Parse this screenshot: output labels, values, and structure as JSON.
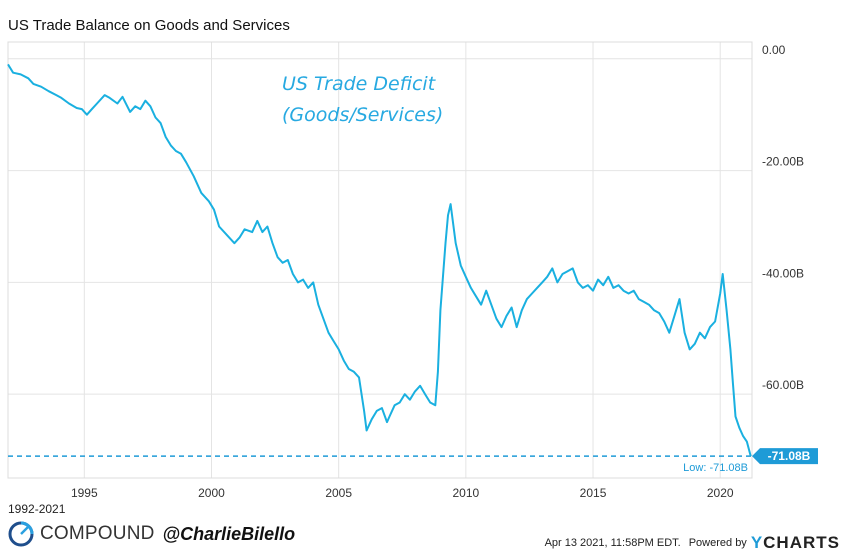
{
  "header": {
    "title": "US Trade Balance on Goods and Services"
  },
  "annotation": {
    "line1": "US Trade Deficit",
    "line2": "(Goods/Services)"
  },
  "footer": {
    "range": "1992-2021",
    "brand": "COMPOUND",
    "handle": "@CharlieBilello",
    "timestamp": "Apr 13 2021, 11:58PM EDT.",
    "powered_by": "Powered by",
    "provider_y": "Y",
    "provider_rest": "CHARTS"
  },
  "colors": {
    "line": "#1ab0e0",
    "grid": "#e4e4e4",
    "accent": "#1e9bd7"
  },
  "chart_data": {
    "type": "line",
    "title": "US Trade Balance on Goods and Services",
    "x_unit": "year",
    "y_unit": "billions USD",
    "xlim": [
      1992.0,
      2021.25
    ],
    "ylim": [
      -75,
      3
    ],
    "x_ticks": [
      1995,
      2000,
      2005,
      2010,
      2015,
      2020
    ],
    "x_tick_labels": [
      "1995",
      "2000",
      "2005",
      "2010",
      "2015",
      "2020"
    ],
    "y_ticks": [
      0,
      -20,
      -40,
      -60
    ],
    "y_tick_labels": [
      "0.00",
      "-20.00B",
      "-40.00B",
      "-60.00B"
    ],
    "grid": true,
    "low_line": {
      "value": -71.08,
      "label": "Low: -71.08B",
      "badge": "-71.08B"
    },
    "series": [
      {
        "values": [
          [
            1992.0,
            -1.0
          ],
          [
            1992.2,
            -2.5
          ],
          [
            1992.5,
            -2.8
          ],
          [
            1992.8,
            -3.5
          ],
          [
            1993.0,
            -4.5
          ],
          [
            1993.3,
            -5.0
          ],
          [
            1993.6,
            -5.8
          ],
          [
            1993.9,
            -6.5
          ],
          [
            1994.1,
            -7.0
          ],
          [
            1994.4,
            -8.0
          ],
          [
            1994.7,
            -8.8
          ],
          [
            1994.9,
            -9.0
          ],
          [
            1995.1,
            -10.0
          ],
          [
            1995.3,
            -9.0
          ],
          [
            1995.5,
            -8.0
          ],
          [
            1995.8,
            -6.5
          ],
          [
            1996.0,
            -7.0
          ],
          [
            1996.3,
            -8.0
          ],
          [
            1996.5,
            -6.8
          ],
          [
            1996.8,
            -9.5
          ],
          [
            1997.0,
            -8.5
          ],
          [
            1997.2,
            -9.0
          ],
          [
            1997.4,
            -7.5
          ],
          [
            1997.6,
            -8.5
          ],
          [
            1997.8,
            -10.5
          ],
          [
            1998.0,
            -11.5
          ],
          [
            1998.2,
            -14.0
          ],
          [
            1998.4,
            -15.5
          ],
          [
            1998.6,
            -16.5
          ],
          [
            1998.8,
            -17.0
          ],
          [
            1999.0,
            -18.5
          ],
          [
            1999.3,
            -21.0
          ],
          [
            1999.6,
            -24.0
          ],
          [
            1999.9,
            -25.5
          ],
          [
            2000.1,
            -27.0
          ],
          [
            2000.3,
            -30.0
          ],
          [
            2000.6,
            -31.5
          ],
          [
            2000.9,
            -33.0
          ],
          [
            2001.1,
            -32.0
          ],
          [
            2001.3,
            -30.5
          ],
          [
            2001.6,
            -31.0
          ],
          [
            2001.8,
            -29.0
          ],
          [
            2002.0,
            -31.0
          ],
          [
            2002.2,
            -30.0
          ],
          [
            2002.4,
            -33.0
          ],
          [
            2002.6,
            -35.5
          ],
          [
            2002.8,
            -36.5
          ],
          [
            2003.0,
            -36.0
          ],
          [
            2003.2,
            -38.5
          ],
          [
            2003.4,
            -40.0
          ],
          [
            2003.6,
            -39.5
          ],
          [
            2003.8,
            -41.0
          ],
          [
            2004.0,
            -40.0
          ],
          [
            2004.2,
            -44.0
          ],
          [
            2004.4,
            -46.5
          ],
          [
            2004.6,
            -49.0
          ],
          [
            2004.8,
            -50.5
          ],
          [
            2005.0,
            -52.0
          ],
          [
            2005.2,
            -54.0
          ],
          [
            2005.4,
            -55.5
          ],
          [
            2005.6,
            -56.0
          ],
          [
            2005.8,
            -57.0
          ],
          [
            2006.0,
            -63.0
          ],
          [
            2006.1,
            -66.5
          ],
          [
            2006.3,
            -64.5
          ],
          [
            2006.5,
            -63.0
          ],
          [
            2006.7,
            -62.5
          ],
          [
            2006.9,
            -65.0
          ],
          [
            2007.0,
            -64.0
          ],
          [
            2007.2,
            -62.0
          ],
          [
            2007.4,
            -61.5
          ],
          [
            2007.6,
            -60.0
          ],
          [
            2007.8,
            -61.0
          ],
          [
            2008.0,
            -59.5
          ],
          [
            2008.2,
            -58.5
          ],
          [
            2008.4,
            -60.0
          ],
          [
            2008.6,
            -61.5
          ],
          [
            2008.8,
            -62.0
          ],
          [
            2008.9,
            -56.0
          ],
          [
            2009.0,
            -45.0
          ],
          [
            2009.2,
            -33.0
          ],
          [
            2009.3,
            -28.0
          ],
          [
            2009.4,
            -26.0
          ],
          [
            2009.6,
            -33.0
          ],
          [
            2009.8,
            -37.0
          ],
          [
            2010.0,
            -39.0
          ],
          [
            2010.2,
            -41.0
          ],
          [
            2010.4,
            -42.5
          ],
          [
            2010.6,
            -44.0
          ],
          [
            2010.8,
            -41.5
          ],
          [
            2011.0,
            -44.0
          ],
          [
            2011.2,
            -46.5
          ],
          [
            2011.4,
            -48.0
          ],
          [
            2011.6,
            -46.0
          ],
          [
            2011.8,
            -44.5
          ],
          [
            2012.0,
            -48.0
          ],
          [
            2012.2,
            -45.0
          ],
          [
            2012.4,
            -43.0
          ],
          [
            2012.6,
            -42.0
          ],
          [
            2012.8,
            -41.0
          ],
          [
            2013.0,
            -40.0
          ],
          [
            2013.2,
            -39.0
          ],
          [
            2013.4,
            -37.5
          ],
          [
            2013.6,
            -40.0
          ],
          [
            2013.8,
            -38.5
          ],
          [
            2014.0,
            -38.0
          ],
          [
            2014.2,
            -37.5
          ],
          [
            2014.4,
            -40.0
          ],
          [
            2014.6,
            -41.0
          ],
          [
            2014.8,
            -40.5
          ],
          [
            2015.0,
            -41.5
          ],
          [
            2015.2,
            -39.5
          ],
          [
            2015.4,
            -40.5
          ],
          [
            2015.6,
            -39.0
          ],
          [
            2015.8,
            -41.0
          ],
          [
            2016.0,
            -40.5
          ],
          [
            2016.2,
            -41.5
          ],
          [
            2016.4,
            -42.0
          ],
          [
            2016.6,
            -41.5
          ],
          [
            2016.8,
            -43.0
          ],
          [
            2017.0,
            -43.5
          ],
          [
            2017.2,
            -44.0
          ],
          [
            2017.4,
            -45.0
          ],
          [
            2017.6,
            -45.5
          ],
          [
            2017.8,
            -47.0
          ],
          [
            2018.0,
            -49.0
          ],
          [
            2018.2,
            -46.0
          ],
          [
            2018.4,
            -43.0
          ],
          [
            2018.6,
            -49.0
          ],
          [
            2018.8,
            -52.0
          ],
          [
            2019.0,
            -51.0
          ],
          [
            2019.2,
            -49.0
          ],
          [
            2019.4,
            -50.0
          ],
          [
            2019.6,
            -48.0
          ],
          [
            2019.8,
            -47.0
          ],
          [
            2020.0,
            -42.0
          ],
          [
            2020.1,
            -38.5
          ],
          [
            2020.25,
            -45.0
          ],
          [
            2020.4,
            -52.0
          ],
          [
            2020.5,
            -58.0
          ],
          [
            2020.6,
            -64.0
          ],
          [
            2020.75,
            -66.0
          ],
          [
            2020.9,
            -67.5
          ],
          [
            2021.05,
            -68.5
          ],
          [
            2021.2,
            -71.08
          ]
        ]
      }
    ]
  }
}
